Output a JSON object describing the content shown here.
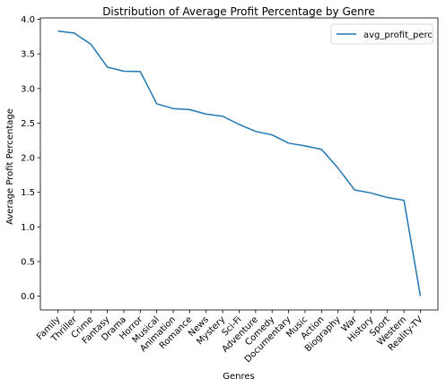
{
  "chart_data": {
    "type": "line",
    "title": "Distribution of Average Profit Percentage by Genre",
    "xlabel": "Genres",
    "ylabel": "Average Profit Percentage",
    "categories": [
      "Family",
      "Thriller",
      "Crime",
      "Fantasy",
      "Drama",
      "Horror",
      "Musical",
      "Animation",
      "Romance",
      "News",
      "Mystery",
      "Sci-Fi",
      "Adventure",
      "Comedy",
      "Documentary",
      "Music",
      "Action",
      "Biography",
      "War",
      "History",
      "Sport",
      "Western",
      "Reality-TV"
    ],
    "series": [
      {
        "name": "avg_profit_perc",
        "color": "#1f77b4",
        "values": [
          3.83,
          3.8,
          3.64,
          3.31,
          3.25,
          3.245,
          2.78,
          2.71,
          2.695,
          2.63,
          2.6,
          2.48,
          2.38,
          2.33,
          2.21,
          2.17,
          2.12,
          1.85,
          1.535,
          1.49,
          1.425,
          1.385,
          0.0
        ]
      }
    ],
    "ylim": [
      -0.2,
      4.02
    ],
    "yticks": [
      "0.0",
      "0.5",
      "1.0",
      "1.5",
      "2.0",
      "2.5",
      "3.0",
      "3.5",
      "4.0"
    ],
    "grid": false,
    "legend": "top-right"
  }
}
